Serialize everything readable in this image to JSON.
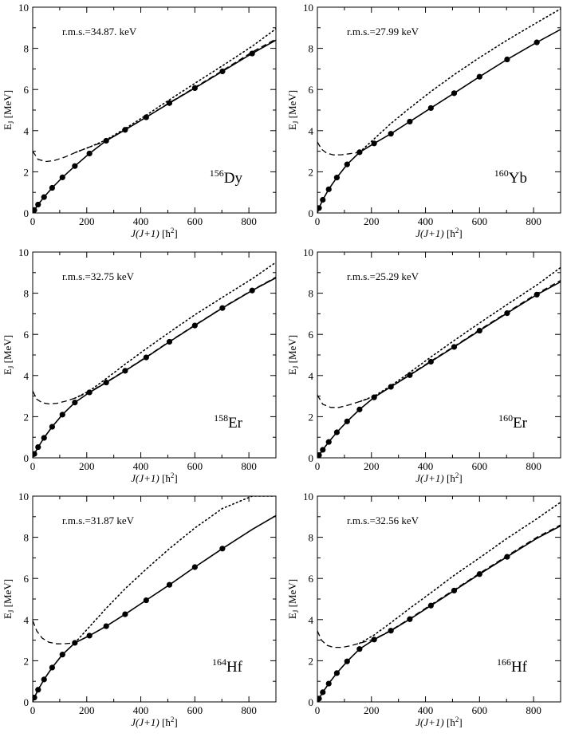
{
  "chart_data": [
    {
      "type": "line",
      "nucleus_mass": "156",
      "nucleus_symbol": "Dy",
      "rms": "r.m.s.=34.87. keV",
      "xlabel_prefix": "J(J+1)",
      "xlabel_unit_open": " [ħ",
      "xlabel_unit_exp": "2",
      "xlabel_unit_close": "]",
      "ylabel_main": "E",
      "ylabel_sub": "J",
      "ylabel_unit": " [MeV]",
      "xlim": [
        0,
        900
      ],
      "ylim": [
        0,
        10
      ],
      "xticks": [
        "0",
        "200",
        "400",
        "600",
        "800"
      ],
      "yticks": [
        "0",
        "2",
        "4",
        "6",
        "8",
        "10"
      ],
      "series": [
        {
          "name": "experiment",
          "style": "points",
          "x": [
            6,
            20,
            42,
            72,
            110,
            156,
            210,
            272,
            342,
            420,
            506,
            600,
            702,
            812
          ],
          "y": [
            0.14,
            0.41,
            0.77,
            1.22,
            1.73,
            2.28,
            2.89,
            3.51,
            4.04,
            4.65,
            5.34,
            6.07,
            6.88,
            7.75
          ]
        },
        {
          "name": "fit-solid",
          "style": "solid",
          "x": [
            0,
            6,
            20,
            42,
            72,
            110,
            156,
            210,
            272,
            342,
            420,
            506,
            600,
            702,
            812,
            900
          ],
          "y": [
            0.0,
            0.14,
            0.41,
            0.77,
            1.22,
            1.73,
            2.28,
            2.89,
            3.51,
            4.04,
            4.65,
            5.34,
            6.07,
            6.88,
            7.75,
            8.4
          ]
        },
        {
          "name": "fit-dashed",
          "style": "dashed",
          "x": [
            0,
            20,
            50,
            80,
            120,
            160,
            210,
            272,
            342,
            420,
            506,
            600,
            702,
            812,
            900
          ],
          "y": [
            3.0,
            2.6,
            2.5,
            2.55,
            2.72,
            2.95,
            3.2,
            3.5,
            4.05,
            4.66,
            5.36,
            6.1,
            6.92,
            7.82,
            8.45
          ]
        },
        {
          "name": "fit-dotted",
          "style": "dotted",
          "x": [
            160,
            210,
            272,
            342,
            420,
            506,
            600,
            702,
            812,
            900
          ],
          "y": [
            2.95,
            3.2,
            3.55,
            4.1,
            4.75,
            5.5,
            6.3,
            7.15,
            8.1,
            8.95
          ]
        }
      ]
    },
    {
      "type": "line",
      "nucleus_mass": "160",
      "nucleus_symbol": "Yb",
      "rms": "r.m.s.=27.99 keV",
      "xlabel_prefix": "J(J+1)",
      "xlabel_unit_open": " [ħ",
      "xlabel_unit_exp": "2",
      "xlabel_unit_close": "]",
      "ylabel_main": "E",
      "ylabel_sub": "J",
      "ylabel_unit": " [MeV]",
      "xlim": [
        0,
        900
      ],
      "ylim": [
        0,
        10
      ],
      "xticks": [
        "0",
        "200",
        "400",
        "600",
        "800"
      ],
      "yticks": [
        "0",
        "2",
        "4",
        "6",
        "8",
        "10"
      ],
      "series": [
        {
          "name": "experiment",
          "style": "points",
          "x": [
            6,
            20,
            42,
            72,
            110,
            156,
            210,
            272,
            342,
            420,
            506,
            600,
            702,
            812
          ],
          "y": [
            0.24,
            0.64,
            1.15,
            1.72,
            2.36,
            2.95,
            3.38,
            3.85,
            4.44,
            5.1,
            5.82,
            6.62,
            7.46,
            8.29
          ]
        },
        {
          "name": "fit-solid",
          "style": "solid",
          "x": [
            0,
            6,
            20,
            42,
            72,
            110,
            156,
            210,
            272,
            342,
            420,
            506,
            600,
            702,
            812,
            900
          ],
          "y": [
            0.0,
            0.24,
            0.64,
            1.15,
            1.72,
            2.36,
            2.95,
            3.38,
            3.85,
            4.44,
            5.1,
            5.82,
            6.62,
            7.46,
            8.29,
            8.92
          ]
        },
        {
          "name": "fit-dashed",
          "style": "dashed",
          "x": [
            0,
            15,
            35,
            60,
            90,
            120,
            156
          ],
          "y": [
            3.45,
            3.1,
            2.9,
            2.82,
            2.83,
            2.88,
            2.95
          ]
        },
        {
          "name": "fit-dotted",
          "style": "dotted",
          "x": [
            156,
            210,
            272,
            342,
            420,
            506,
            600,
            702,
            812,
            900
          ],
          "y": [
            2.95,
            3.6,
            4.35,
            5.1,
            5.9,
            6.72,
            7.55,
            8.4,
            9.25,
            9.92
          ]
        }
      ]
    },
    {
      "type": "line",
      "nucleus_mass": "158",
      "nucleus_symbol": "Er",
      "rms": "r.m.s.=32.75 keV",
      "xlabel_prefix": "J(J+1)",
      "xlabel_unit_open": " [ħ",
      "xlabel_unit_exp": "2",
      "xlabel_unit_close": "]",
      "ylabel_main": "E",
      "ylabel_sub": "J",
      "ylabel_unit": " [MeV]",
      "xlim": [
        0,
        900
      ],
      "ylim": [
        0,
        10
      ],
      "xticks": [
        "0",
        "200",
        "400",
        "600",
        "800"
      ],
      "yticks": [
        "0",
        "2",
        "4",
        "6",
        "8",
        "10"
      ],
      "series": [
        {
          "name": "experiment",
          "style": "points",
          "x": [
            6,
            20,
            42,
            72,
            110,
            156,
            210,
            272,
            342,
            420,
            506,
            600,
            702,
            812
          ],
          "y": [
            0.19,
            0.52,
            0.97,
            1.51,
            2.1,
            2.69,
            3.18,
            3.66,
            4.23,
            4.88,
            5.64,
            6.43,
            7.28,
            8.13
          ]
        },
        {
          "name": "fit-solid",
          "style": "solid",
          "x": [
            0,
            6,
            20,
            42,
            72,
            110,
            156,
            210,
            272,
            342,
            420,
            506,
            600,
            702,
            812,
            900
          ],
          "y": [
            0.0,
            0.19,
            0.52,
            0.97,
            1.51,
            2.1,
            2.69,
            3.18,
            3.66,
            4.23,
            4.88,
            5.64,
            6.43,
            7.28,
            8.13,
            8.75
          ]
        },
        {
          "name": "fit-dashed",
          "style": "dashed",
          "x": [
            0,
            15,
            35,
            60,
            90,
            120,
            156,
            210,
            272,
            342,
            420,
            506,
            600,
            702,
            812,
            900
          ],
          "y": [
            3.25,
            2.85,
            2.68,
            2.62,
            2.65,
            2.75,
            2.9,
            3.2,
            3.68,
            4.25,
            4.9,
            5.66,
            6.45,
            7.3,
            8.15,
            8.78
          ]
        },
        {
          "name": "fit-dotted",
          "style": "dotted",
          "x": [
            156,
            210,
            272,
            342,
            420,
            506,
            600,
            702,
            812,
            900
          ],
          "y": [
            2.9,
            3.25,
            3.85,
            4.55,
            5.3,
            6.1,
            6.95,
            7.8,
            8.7,
            9.5
          ]
        }
      ]
    },
    {
      "type": "line",
      "nucleus_mass": "160",
      "nucleus_symbol": "Er",
      "rms": "r.m.s.=25.29 keV",
      "xlabel_prefix": "J(J+1)",
      "xlabel_unit_open": " [ħ",
      "xlabel_unit_exp": "2",
      "xlabel_unit_close": "]",
      "ylabel_main": "E",
      "ylabel_sub": "J",
      "ylabel_unit": " [MeV]",
      "xlim": [
        0,
        900
      ],
      "ylim": [
        0,
        10
      ],
      "xticks": [
        "0",
        "200",
        "400",
        "600",
        "800"
      ],
      "yticks": [
        "0",
        "2",
        "4",
        "6",
        "8",
        "10"
      ],
      "series": [
        {
          "name": "experiment",
          "style": "points",
          "x": [
            6,
            20,
            42,
            72,
            110,
            156,
            210,
            272,
            342,
            420,
            506,
            600,
            702,
            812
          ],
          "y": [
            0.13,
            0.39,
            0.77,
            1.24,
            1.77,
            2.35,
            2.94,
            3.45,
            4.02,
            4.67,
            5.39,
            6.18,
            7.03,
            7.93
          ]
        },
        {
          "name": "fit-solid",
          "style": "solid",
          "x": [
            0,
            6,
            20,
            42,
            72,
            110,
            156,
            210,
            272,
            342,
            420,
            506,
            600,
            702,
            812,
            900
          ],
          "y": [
            0.0,
            0.13,
            0.39,
            0.77,
            1.24,
            1.77,
            2.35,
            2.94,
            3.45,
            4.02,
            4.67,
            5.39,
            6.18,
            7.03,
            7.93,
            8.55
          ]
        },
        {
          "name": "fit-dashed",
          "style": "dashed",
          "x": [
            0,
            20,
            50,
            80,
            120,
            160,
            210,
            272,
            342,
            420,
            506,
            600,
            702,
            812,
            900
          ],
          "y": [
            3.05,
            2.6,
            2.45,
            2.45,
            2.58,
            2.75,
            2.97,
            3.45,
            4.05,
            4.7,
            5.42,
            6.22,
            7.07,
            7.98,
            8.62
          ]
        },
        {
          "name": "fit-dotted",
          "style": "dotted",
          "x": [
            160,
            210,
            272,
            342,
            420,
            506,
            600,
            702,
            812,
            900
          ],
          "y": [
            2.75,
            3.0,
            3.5,
            4.15,
            4.9,
            5.7,
            6.55,
            7.45,
            8.4,
            9.25
          ]
        }
      ]
    },
    {
      "type": "line",
      "nucleus_mass": "164",
      "nucleus_symbol": "Hf",
      "rms": "r.m.s.=31.87 keV",
      "xlabel_prefix": "J(J+1)",
      "xlabel_unit_open": " [ħ",
      "xlabel_unit_exp": "2",
      "xlabel_unit_close": "]",
      "ylabel_main": "E",
      "ylabel_sub": "J",
      "ylabel_unit": " [MeV]",
      "xlim": [
        0,
        900
      ],
      "ylim": [
        0,
        10
      ],
      "xticks": [
        "0",
        "200",
        "400",
        "600",
        "800"
      ],
      "yticks": [
        "0",
        "2",
        "4",
        "6",
        "8",
        "10"
      ],
      "series": [
        {
          "name": "experiment",
          "style": "points",
          "x": [
            6,
            20,
            42,
            72,
            110,
            156,
            210,
            272,
            342,
            420,
            506,
            600,
            702
          ],
          "y": [
            0.21,
            0.59,
            1.09,
            1.67,
            2.3,
            2.87,
            3.22,
            3.68,
            4.26,
            4.94,
            5.69,
            6.55,
            7.45
          ]
        },
        {
          "name": "fit-solid",
          "style": "solid",
          "x": [
            0,
            6,
            20,
            42,
            72,
            110,
            156,
            210,
            272,
            342,
            420,
            506,
            600,
            702,
            812,
            900
          ],
          "y": [
            0.0,
            0.21,
            0.59,
            1.09,
            1.67,
            2.3,
            2.87,
            3.22,
            3.68,
            4.26,
            4.94,
            5.69,
            6.55,
            7.45,
            8.38,
            9.05
          ]
        },
        {
          "name": "fit-dashed",
          "style": "dashed",
          "x": [
            0,
            15,
            35,
            60,
            90,
            120,
            156
          ],
          "y": [
            3.95,
            3.45,
            3.1,
            2.9,
            2.82,
            2.83,
            2.87
          ]
        },
        {
          "name": "fit-dotted",
          "style": "dotted",
          "x": [
            156,
            210,
            272,
            342,
            420,
            506,
            600,
            702,
            812,
            890
          ],
          "y": [
            2.87,
            3.65,
            4.55,
            5.5,
            6.45,
            7.45,
            8.45,
            9.4,
            10.0,
            10.0
          ]
        }
      ]
    },
    {
      "type": "line",
      "nucleus_mass": "166",
      "nucleus_symbol": "Hf",
      "rms": "r.m.s.=32.56 keV",
      "xlabel_prefix": "J(J+1)",
      "xlabel_unit_open": " [ħ",
      "xlabel_unit_exp": "2",
      "xlabel_unit_close": "]",
      "ylabel_main": "E",
      "ylabel_sub": "J",
      "ylabel_unit": " [MeV]",
      "xlim": [
        0,
        900
      ],
      "ylim": [
        0,
        10
      ],
      "xticks": [
        "0",
        "200",
        "400",
        "600",
        "800"
      ],
      "yticks": [
        "0",
        "2",
        "4",
        "6",
        "8",
        "10"
      ],
      "series": [
        {
          "name": "experiment",
          "style": "points",
          "x": [
            6,
            20,
            42,
            72,
            110,
            156,
            210,
            272,
            342,
            420,
            506,
            600,
            702
          ],
          "y": [
            0.16,
            0.47,
            0.89,
            1.4,
            1.97,
            2.57,
            3.03,
            3.46,
            4.02,
            4.68,
            5.41,
            6.21,
            7.05
          ]
        },
        {
          "name": "fit-solid",
          "style": "solid",
          "x": [
            0,
            6,
            20,
            42,
            72,
            110,
            156,
            210,
            272,
            342,
            420,
            506,
            600,
            702,
            812,
            900
          ],
          "y": [
            0.0,
            0.16,
            0.47,
            0.89,
            1.4,
            1.97,
            2.57,
            3.03,
            3.46,
            4.02,
            4.68,
            5.41,
            6.21,
            7.05,
            7.95,
            8.55
          ]
        },
        {
          "name": "fit-dashed",
          "style": "dashed",
          "x": [
            0,
            15,
            35,
            60,
            90,
            120,
            156,
            210,
            272,
            342,
            420,
            506,
            600,
            702,
            812,
            900
          ],
          "y": [
            3.45,
            3.0,
            2.75,
            2.65,
            2.65,
            2.72,
            2.85,
            3.05,
            3.48,
            4.05,
            4.72,
            5.45,
            6.25,
            7.1,
            8.0,
            8.6
          ]
        },
        {
          "name": "fit-dotted",
          "style": "dotted",
          "x": [
            156,
            210,
            272,
            342,
            420,
            506,
            600,
            702,
            812,
            900
          ],
          "y": [
            2.85,
            3.25,
            3.85,
            4.55,
            5.3,
            6.15,
            7.0,
            7.95,
            8.9,
            9.7
          ]
        }
      ]
    }
  ]
}
